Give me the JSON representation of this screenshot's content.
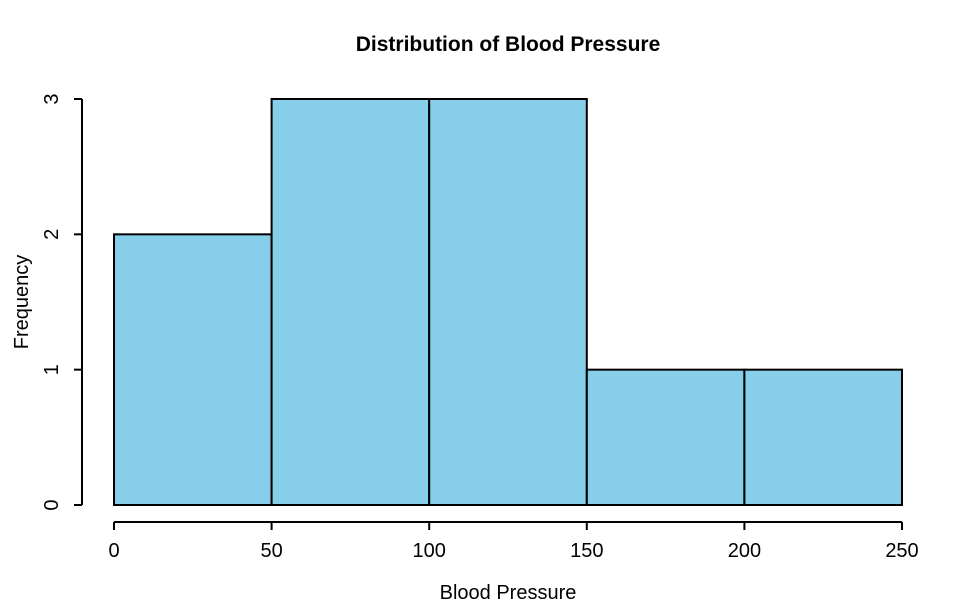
{
  "window": {
    "background_color": "#ffffff"
  },
  "chart_data": {
    "type": "bar",
    "subtype": "histogram",
    "title": "Distribution of Blood Pressure",
    "xlabel": "Blood Pressure",
    "ylabel": "Frequency",
    "bin_breaks": [
      0,
      50,
      100,
      150,
      200,
      250
    ],
    "counts": [
      2,
      3,
      3,
      1,
      1
    ],
    "x_ticks": [
      0,
      50,
      100,
      150,
      200,
      250
    ],
    "x_tick_labels": [
      "0",
      "50",
      "100",
      "150",
      "200",
      "250"
    ],
    "y_ticks": [
      0,
      1,
      2,
      3
    ],
    "y_tick_labels": [
      "0",
      "1",
      "2",
      "3"
    ],
    "xlim": [
      0,
      250
    ],
    "ylim": [
      0,
      3
    ],
    "grid": false,
    "legend_position": "none",
    "bar_fill_color": "#87CEEB",
    "bar_border_color": "#000000",
    "axis_color": "#000000",
    "text_color": "#000000"
  }
}
